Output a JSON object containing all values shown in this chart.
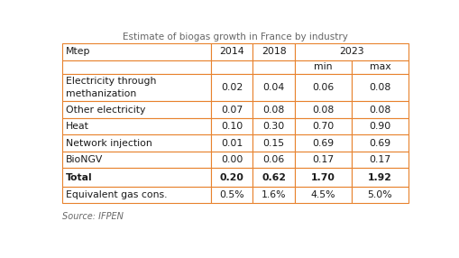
{
  "title": "Estimate of biogas growth in France by industry",
  "source": "Source: IFPEN",
  "rows": [
    {
      "label": "Electricity through\nmethanization",
      "v2014": "0.02",
      "v2018": "0.04",
      "vmin": "0.06",
      "vmax": "0.08",
      "bold": false,
      "tall": true
    },
    {
      "label": "Other electricity",
      "v2014": "0.07",
      "v2018": "0.08",
      "vmin": "0.08",
      "vmax": "0.08",
      "bold": false,
      "tall": false
    },
    {
      "label": "Heat",
      "v2014": "0.10",
      "v2018": "0.30",
      "vmin": "0.70",
      "vmax": "0.90",
      "bold": false,
      "tall": false
    },
    {
      "label": "Network injection",
      "v2014": "0.01",
      "v2018": "0.15",
      "vmin": "0.69",
      "vmax": "0.69",
      "bold": false,
      "tall": false
    },
    {
      "label": "BioNGV",
      "v2014": "0.00",
      "v2018": "0.06",
      "vmin": "0.17",
      "vmax": "0.17",
      "bold": false,
      "tall": false
    },
    {
      "label": "Total",
      "v2014": "0.20",
      "v2018": "0.62",
      "vmin": "1.70",
      "vmax": "1.92",
      "bold": true,
      "tall": false
    },
    {
      "label": "Equivalent gas cons.",
      "v2014": "0.5%",
      "v2018": "1.6%",
      "vmin": "4.5%",
      "vmax": "5.0%",
      "bold": false,
      "tall": false
    }
  ],
  "border_color": "#E8822D",
  "text_color": "#1a1a1a",
  "title_color": "#666666",
  "source_color": "#666666",
  "font_size": 7.8,
  "title_font_size": 7.5,
  "source_font_size": 7.0
}
